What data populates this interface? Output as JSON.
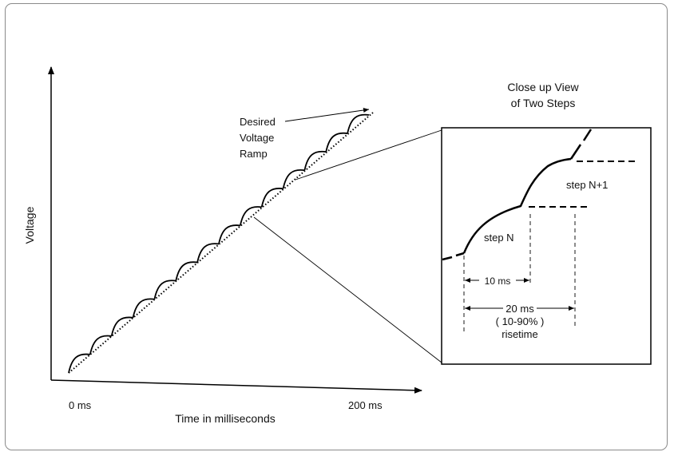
{
  "diagram": {
    "y_axis_label": "Voltage",
    "x_axis_title": "Time in milliseconds",
    "x_start_label": "0 ms",
    "x_end_label": "200 ms",
    "ramp_label": [
      "Desired",
      "Voltage",
      "Ramp"
    ],
    "closeup_title": [
      "Close up View",
      "of Two Steps"
    ],
    "step_n_label": "step N",
    "step_n1_label": "step N+1",
    "dim_10ms_label": "10 ms",
    "dim_20ms_label": "20 ms",
    "dim_10_90_label": "( 10-90% )",
    "risetime_label": "risetime"
  }
}
